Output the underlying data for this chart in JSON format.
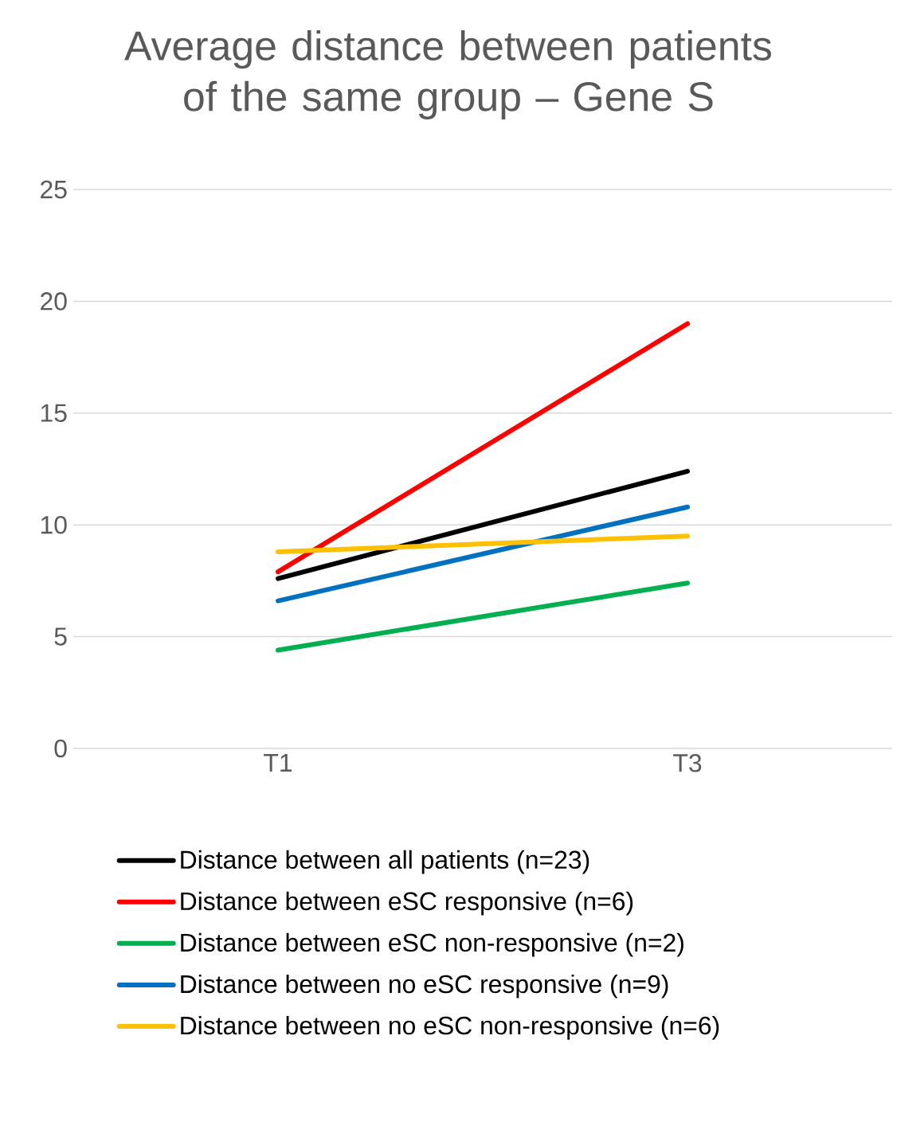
{
  "chart_data": {
    "type": "line",
    "title": "Average distance between patients of the same group – Gene S",
    "categories": [
      "T1",
      "T3"
    ],
    "series": [
      {
        "name": "Distance between all patients (n=23)",
        "color": "#000000",
        "values": [
          7.6,
          12.4
        ]
      },
      {
        "name": "Distance between eSC responsive (n=6)",
        "color": "#ff0000",
        "values": [
          7.9,
          19.0
        ]
      },
      {
        "name": "Distance between eSC non-responsive (n=2)",
        "color": "#00b050",
        "values": [
          4.4,
          7.4
        ]
      },
      {
        "name": "Distance between no eSC responsive (n=9)",
        "color": "#0070c0",
        "values": [
          6.6,
          10.8
        ]
      },
      {
        "name": "Distance between no eSC non-responsive (n=6)",
        "color": "#ffc000",
        "values": [
          8.8,
          9.5
        ]
      }
    ],
    "ylim": [
      0,
      25
    ],
    "yticks": [
      0,
      5,
      10,
      15,
      20,
      25
    ],
    "grid": "y",
    "legend": "bottom"
  }
}
